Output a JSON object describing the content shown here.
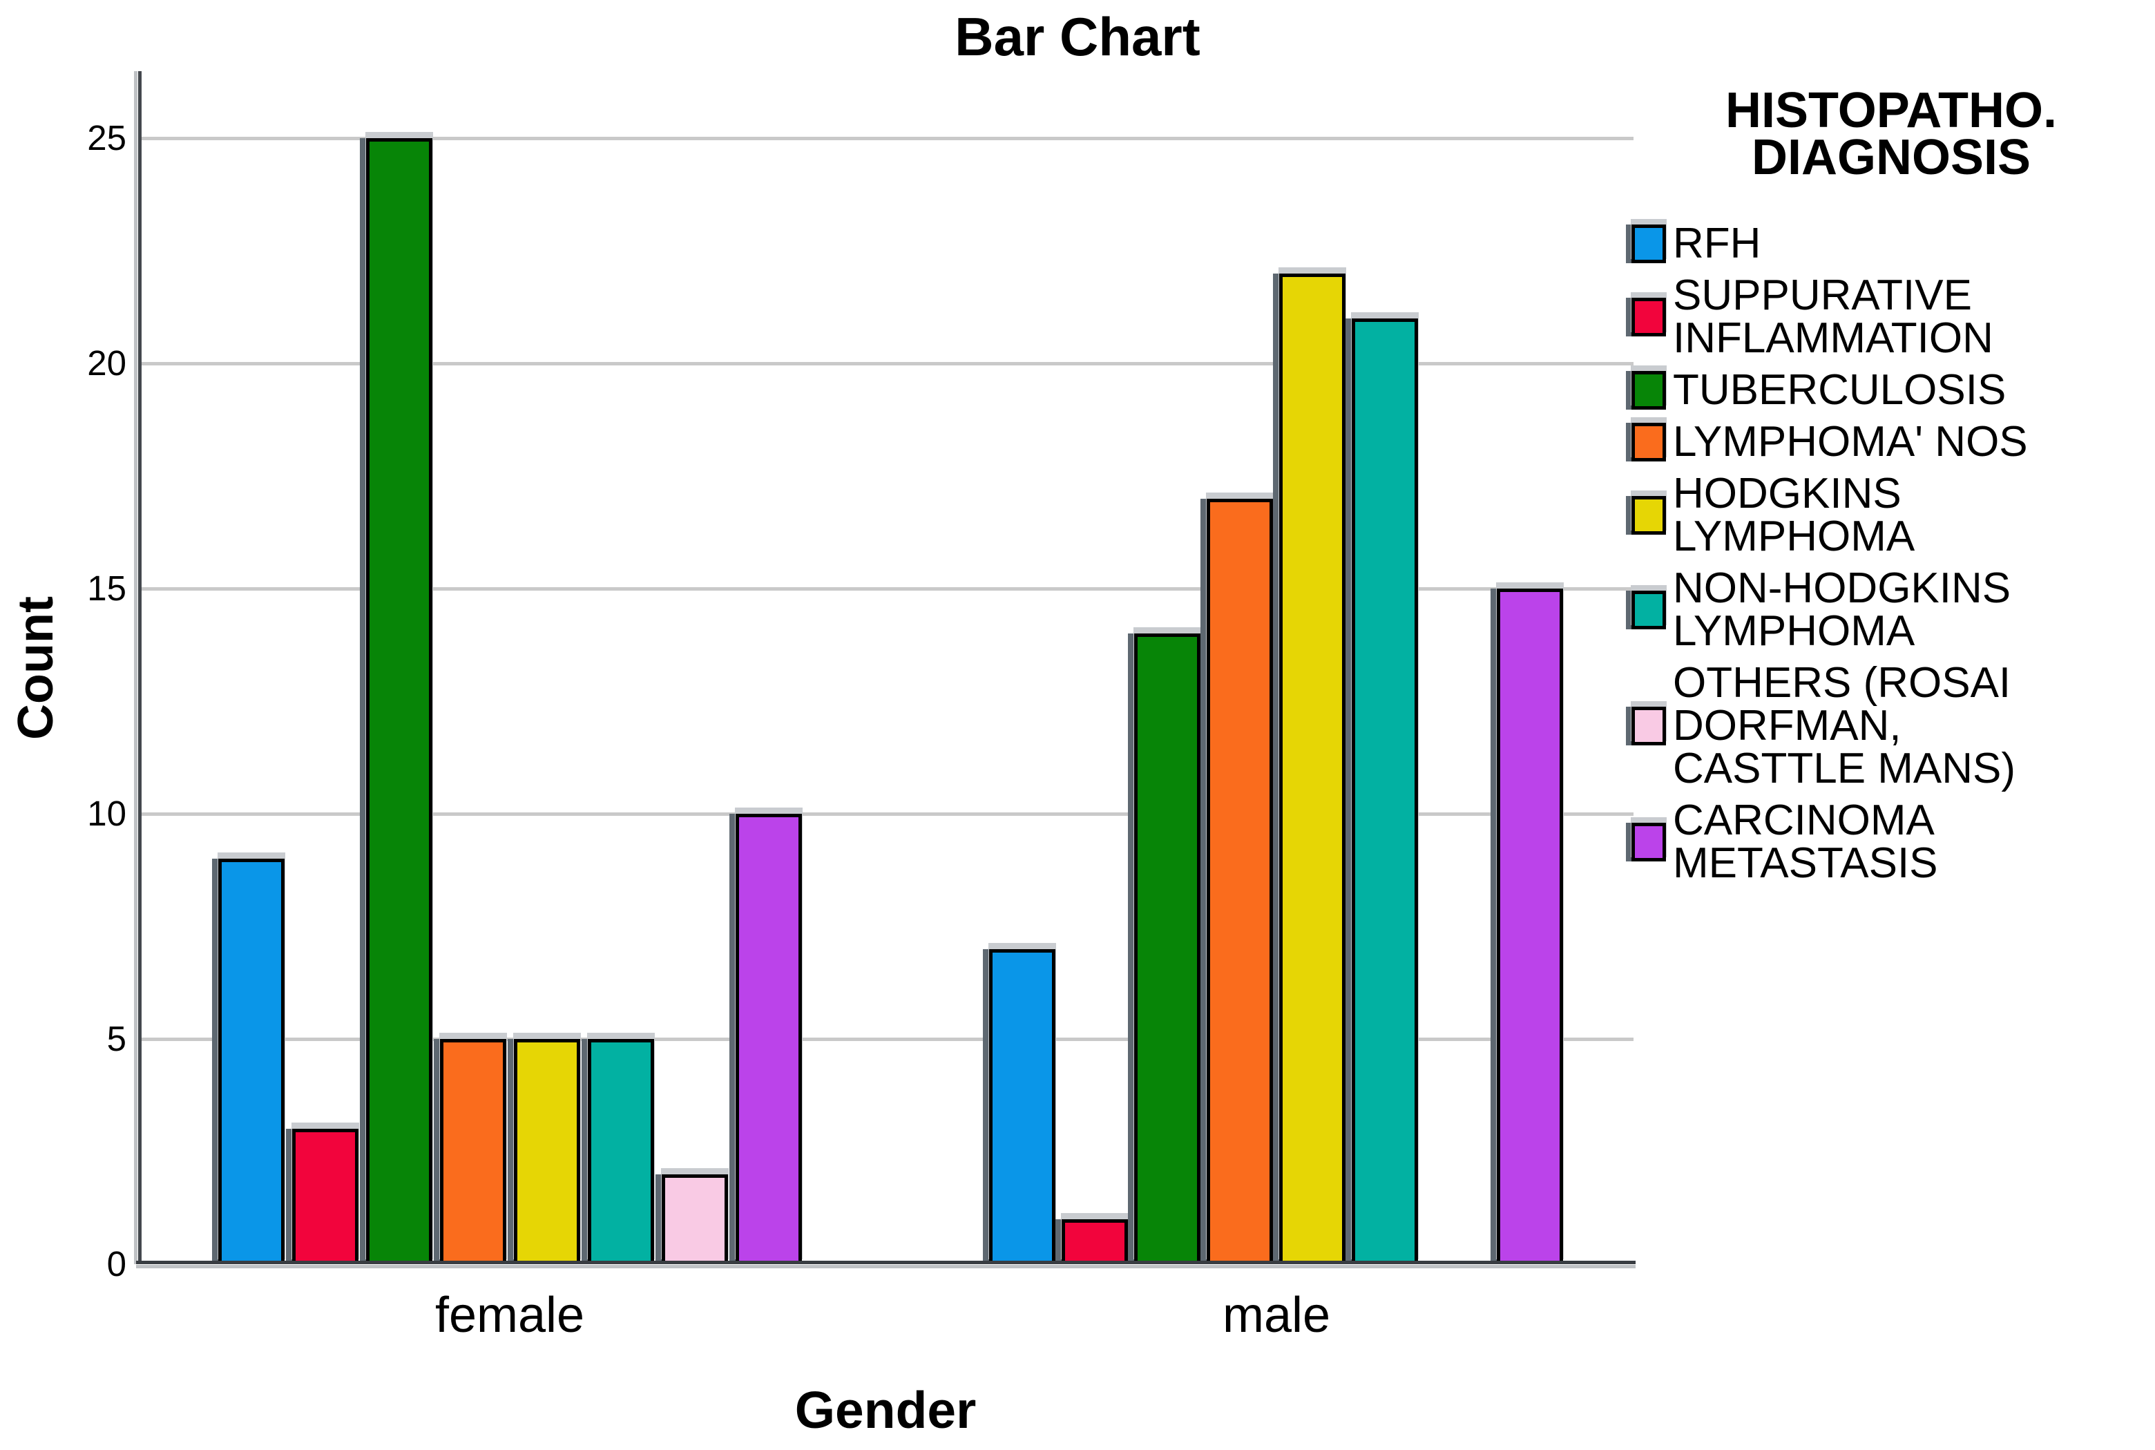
{
  "title": "Bar Chart",
  "y_axis": {
    "label": "Count",
    "ticks": [
      "0",
      "5",
      "10",
      "15",
      "20",
      "25"
    ]
  },
  "x_axis": {
    "label": "Gender",
    "categories": [
      "female",
      "male"
    ]
  },
  "legend": {
    "title_lines": [
      "HISTOPATHO.",
      "DIAGNOSIS"
    ],
    "items": [
      {
        "label_lines": [
          "RFH"
        ],
        "color": "#0A96E8"
      },
      {
        "label_lines": [
          "SUPPURATIVE",
          "INFLAMMATION"
        ],
        "color": "#F2043C"
      },
      {
        "label_lines": [
          "TUBERCULOSIS"
        ],
        "color": "#078507"
      },
      {
        "label_lines": [
          "LYMPHOMA' NOS"
        ],
        "color": "#FA6C1D"
      },
      {
        "label_lines": [
          "HODGKINS LYMPHOMA"
        ],
        "color": "#E6D605"
      },
      {
        "label_lines": [
          "NON-HODGKINS LYMPHOMA"
        ],
        "color": "#02B1A2"
      },
      {
        "label_lines": [
          "OTHERS (ROSAI DORFMAN,",
          "CASTTLE MANS)"
        ],
        "color": "#F9CAE4"
      },
      {
        "label_lines": [
          "CARCINOMA METASTASIS"
        ],
        "color": "#BB43EA"
      }
    ]
  },
  "chart_data": {
    "type": "bar",
    "title": "Bar Chart",
    "xlabel": "Gender",
    "ylabel": "Count",
    "categories": [
      "female",
      "male"
    ],
    "series": [
      {
        "name": "RFH",
        "color": "#0A96E8",
        "values": [
          9,
          7
        ]
      },
      {
        "name": "SUPPURATIVE INFLAMMATION",
        "color": "#F2043C",
        "values": [
          3,
          1
        ]
      },
      {
        "name": "TUBERCULOSIS",
        "color": "#078507",
        "values": [
          25,
          14
        ]
      },
      {
        "name": "LYMPHOMA' NOS",
        "color": "#FA6C1D",
        "values": [
          5,
          17
        ]
      },
      {
        "name": "HODGKINS LYMPHOMA",
        "color": "#E6D605",
        "values": [
          5,
          22
        ]
      },
      {
        "name": "NON-HODGKINS LYMPHOMA",
        "color": "#02B1A2",
        "values": [
          5,
          21
        ]
      },
      {
        "name": "OTHERS (ROSAI DORFMAN, CASTTLE MANS)",
        "color": "#F9CAE4",
        "values": [
          2,
          0
        ]
      },
      {
        "name": "CARCINOMA METASTASIS",
        "color": "#BB43EA",
        "values": [
          10,
          15
        ]
      }
    ],
    "ylim": [
      0,
      26.5
    ],
    "yticks": [
      0,
      5,
      10,
      15,
      20,
      25
    ],
    "grid": "horizontal",
    "legend_position": "right",
    "legend_title": "HISTOPATHO. DIAGNOSIS"
  }
}
